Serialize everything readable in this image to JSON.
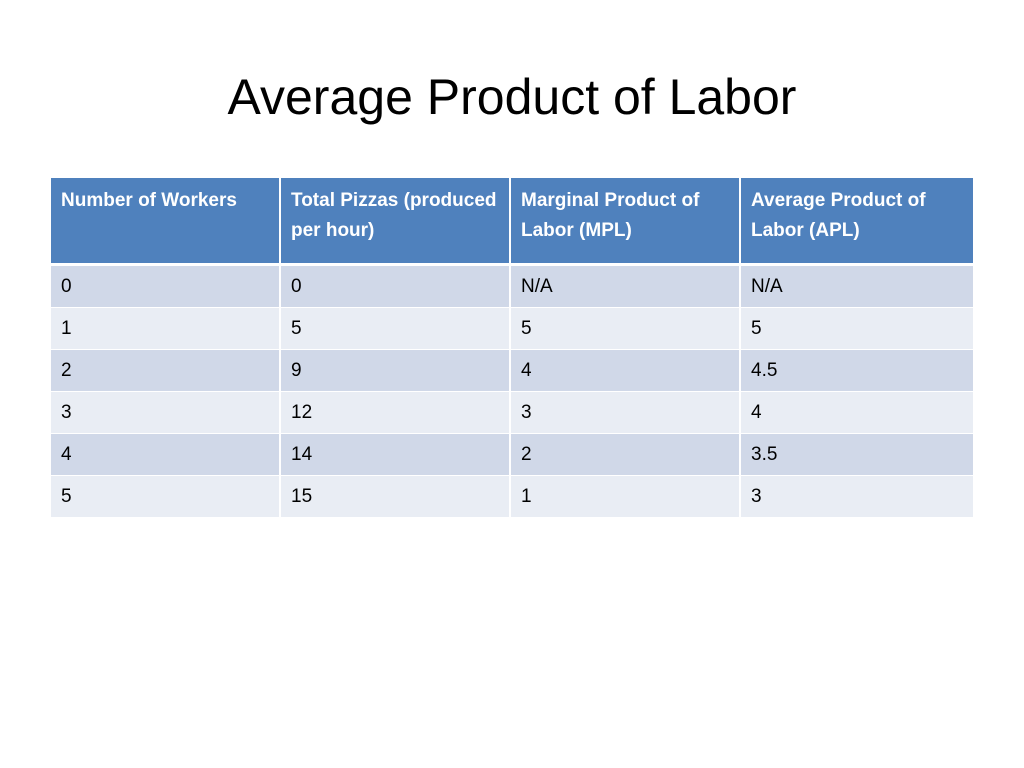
{
  "slide": {
    "title": "Average Product of Labor"
  },
  "table": {
    "headers": [
      "Number of Workers",
      "Total Pizzas (produced per hour)",
      "Marginal Product of Labor (MPL)",
      "Average Product of Labor (APL)"
    ],
    "rows": [
      [
        "0",
        "0",
        "N/A",
        "N/A"
      ],
      [
        "1",
        "5",
        "5",
        "5"
      ],
      [
        "2",
        "9",
        "4",
        "4.5"
      ],
      [
        "3",
        "12",
        "3",
        "4"
      ],
      [
        "4",
        "14",
        "2",
        "3.5"
      ],
      [
        "5",
        "15",
        "1",
        "3"
      ]
    ]
  },
  "colors": {
    "header_bg": "#4f81bd",
    "row_band_dark": "#d0d8e8",
    "row_band_light": "#e9edf4"
  }
}
